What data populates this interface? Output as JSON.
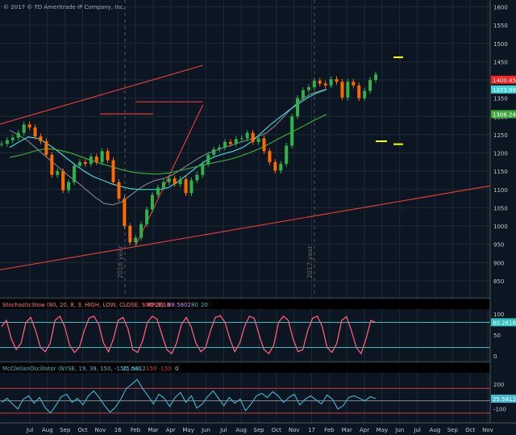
{
  "copyright": "© 2017 © TD Ameritrade IP Company, Inc.",
  "colors": {
    "background": "#0b1622",
    "grid": "#1d2a36",
    "axis_text": "#c8c8c8",
    "price_up": "#2fb24a",
    "price_down": "#ff6a00",
    "ma_fast": "#7f7f7f",
    "ma_mid": "#3fd3d8",
    "ma_slow": "#3ca83c",
    "trendline": "#e03a3a",
    "target": "#ffff00",
    "stoch_line": "#ff5a78",
    "stoch_level": "#30c0c0",
    "mcclellan_line": "#40b8d0",
    "mcclellan_level": "#d03a3a"
  },
  "chart_data": [
    {
      "type": "line",
      "panel": "price",
      "title": "",
      "ylim": [
        810,
        1610
      ],
      "y_ticks": [
        850,
        900,
        950,
        1000,
        1050,
        1100,
        1150,
        1200,
        1250,
        1300,
        1350,
        1400,
        1450,
        1500,
        1550,
        1600
      ],
      "x_ticks": [
        "Jul",
        "Aug",
        "Sep",
        "Oct",
        "Nov",
        "16",
        "Feb",
        "Mar",
        "Apr",
        "May",
        "Jun",
        "Jul",
        "Aug",
        "Sep",
        "Oct",
        "Nov",
        "17",
        "Feb",
        "Mar",
        "Apr",
        "May",
        "Jun",
        "Jul",
        "Aug",
        "Sep",
        "Oct",
        "Nov"
      ],
      "year_markers": [
        "2016 year",
        "2017 year"
      ],
      "price_labels": [
        {
          "text": "1400.45",
          "value": 1400.45,
          "color": "#ff2222"
        },
        {
          "text": "1373.96",
          "value": 1373.96,
          "color": "#3fd3d8"
        },
        {
          "text": "1306.24",
          "value": 1306.24,
          "color": "#3ca83c"
        }
      ],
      "series": [
        {
          "name": "",
          "values": [
            1225,
            1235,
            1242,
            1255,
            1278,
            1270,
            1245,
            1232,
            1195,
            1140,
            1150,
            1098,
            1120,
            1165,
            1175,
            1170,
            1190,
            1175,
            1205,
            1180,
            1120,
            1075,
            1000,
            955,
            968,
            1005,
            1045,
            1085,
            1105,
            1120,
            1130,
            1115,
            1128,
            1090,
            1125,
            1140,
            1170,
            1195,
            1210,
            1215,
            1230,
            1225,
            1238,
            1240,
            1255,
            1230,
            1240,
            1205,
            1175,
            1152,
            1170,
            1220,
            1300,
            1350,
            1372,
            1380,
            1398,
            1390,
            1385,
            1402,
            1395,
            1352,
            1395,
            1385,
            1350,
            1370,
            1400,
            1415
          ]
        }
      ],
      "moving_averages": [
        {
          "name": "",
          "values": [
            1262,
            1250,
            1235,
            1215,
            1195,
            1175,
            1155,
            1135,
            1118,
            1098,
            1078,
            1062,
            1058,
            1065,
            1082,
            1100,
            1115,
            1125,
            1130,
            1140,
            1155,
            1170,
            1185,
            1198,
            1206,
            1215,
            1222,
            1230,
            1237,
            1245,
            1255,
            1275,
            1300,
            1325,
            1345,
            1360,
            1368,
            1375
          ]
        },
        {
          "name": "",
          "values": [
            1215,
            1230,
            1244,
            1240,
            1226,
            1208,
            1188,
            1168,
            1150,
            1135,
            1125,
            1115,
            1108,
            1102,
            1100,
            1100,
            1100,
            1105,
            1120,
            1140,
            1160,
            1178,
            1190,
            1198,
            1205,
            1215,
            1232,
            1255,
            1278,
            1298,
            1318,
            1335,
            1352,
            1365,
            1374
          ]
        },
        {
          "name": "",
          "values": [
            1188,
            1195,
            1205,
            1212,
            1208,
            1200,
            1188,
            1176,
            1166,
            1156,
            1148,
            1144,
            1142,
            1145,
            1152,
            1160,
            1168,
            1175,
            1182,
            1192,
            1205,
            1220,
            1238,
            1255,
            1272,
            1290,
            1306
          ]
        }
      ],
      "trendlines": [
        {
          "from": [
            "Jun",
            1279
          ],
          "to": [
            "Apr",
            1440
          ]
        },
        {
          "from": [
            "Jun",
            880
          ],
          "to": [
            "Nov",
            1110
          ]
        },
        {
          "from": [
            "Feb",
            945
          ],
          "to": [
            "Apr",
            1332
          ]
        },
        {
          "from": [
            "Nov",
            1307
          ],
          "to": [
            "Mar",
            1307
          ]
        },
        {
          "from": [
            "Feb",
            1340
          ],
          "to": [
            "Apr",
            1340
          ]
        }
      ],
      "targets": [
        1462,
        1232,
        1224
      ]
    },
    {
      "type": "line",
      "panel": "stochastic",
      "title": "StochasticSlow (80, 20, 8, 3, HIGH, LOW, CLOSE, SIMPLE)",
      "legend_values": [
        "80.2618",
        "88.5802",
        "80",
        "20"
      ],
      "ylim": [
        -10,
        110
      ],
      "y_ticks": [
        0,
        50,
        100
      ],
      "levels": [
        80,
        20
      ],
      "level_label": "80.2618",
      "series": [
        {
          "name": "",
          "values": [
            70,
            85,
            40,
            15,
            30,
            80,
            92,
            60,
            20,
            10,
            30,
            85,
            95,
            70,
            25,
            8,
            20,
            60,
            90,
            95,
            75,
            30,
            10,
            40,
            85,
            92,
            65,
            15,
            8,
            35,
            80,
            95,
            88,
            50,
            15,
            5,
            30,
            75,
            92,
            70,
            30,
            10,
            20,
            60,
            92,
            96,
            80,
            40,
            10,
            30,
            70,
            95,
            90,
            50,
            15,
            5,
            25,
            80,
            95,
            85,
            40,
            10,
            15,
            60,
            90,
            95,
            70,
            20,
            8,
            30,
            85,
            94,
            60,
            20,
            5,
            40,
            85,
            80
          ]
        }
      ]
    },
    {
      "type": "line",
      "panel": "mcclellan",
      "title": "McClellanOscillator (NYSE, 19, 39, 150, -150, no)",
      "legend_values": [
        "25.5812",
        "150",
        "-150",
        "0"
      ],
      "ylim": [
        -250,
        330
      ],
      "y_ticks": [
        -100,
        200
      ],
      "levels": [
        150,
        0,
        -150
      ],
      "level_label": "25.5812",
      "series": [
        {
          "name": "",
          "values": [
            -20,
            30,
            -40,
            -100,
            20,
            60,
            -30,
            40,
            -80,
            -150,
            -60,
            50,
            80,
            -20,
            30,
            -50,
            60,
            120,
            40,
            -60,
            -140,
            -80,
            20,
            150,
            200,
            260,
            150,
            60,
            -40,
            80,
            30,
            -70,
            40,
            100,
            -20,
            60,
            -90,
            -40,
            50,
            120,
            30,
            -60,
            40,
            -30,
            20,
            -120,
            -40,
            60,
            90,
            40,
            110,
            60,
            -20,
            40,
            80,
            -50,
            20,
            60,
            10,
            -40,
            70,
            20,
            -100,
            -60,
            40,
            60,
            30,
            0,
            50,
            25
          ]
        }
      ]
    }
  ]
}
